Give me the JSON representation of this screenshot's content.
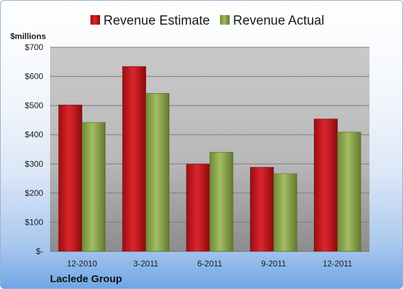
{
  "chart_data": {
    "type": "bar",
    "company": "Laclede Group",
    "unit_label": "$millions",
    "categories": [
      "12-2010",
      "3-2011",
      "6-2011",
      "9-2011",
      "12-2011"
    ],
    "series": [
      {
        "name": "Revenue Estimate",
        "color": "#c0141a",
        "values": [
          502,
          634,
          299,
          288,
          454
        ]
      },
      {
        "name": "Revenue Actual",
        "color": "#8aa84a",
        "values": [
          442,
          542,
          340,
          266,
          409
        ]
      }
    ],
    "ylim": [
      0,
      700
    ],
    "yticks": [
      0,
      100,
      200,
      300,
      400,
      500,
      600,
      700
    ],
    "ytick_labels": [
      "$-",
      "$100",
      "$200",
      "$300",
      "$400",
      "$500",
      "$600",
      "$700"
    ],
    "grid": true,
    "legend_position": "top"
  }
}
